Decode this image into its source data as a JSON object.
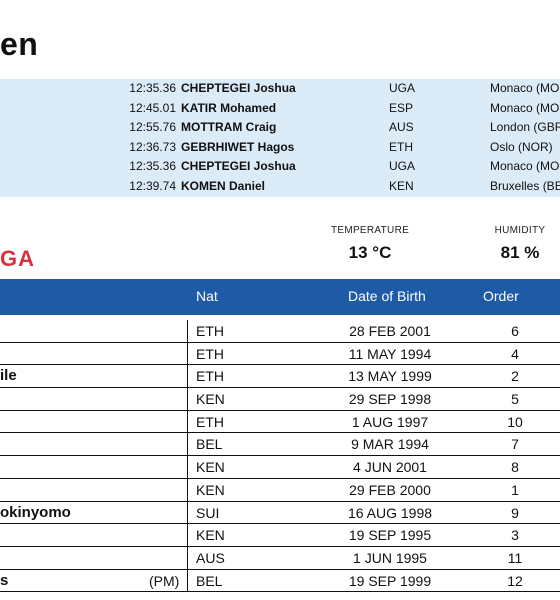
{
  "page": {
    "title_fragment": "en"
  },
  "records": [
    {
      "time": "12:35.36",
      "name": "CHEPTEGEI Joshua",
      "nat": "UGA",
      "venue": "Monaco (MO"
    },
    {
      "time": "12:45.01",
      "name": "KATIR Mohamed",
      "nat": "ESP",
      "venue": "Monaco (MO"
    },
    {
      "time": "12:55.76",
      "name": "MOTTRAM Craig",
      "nat": "AUS",
      "venue": "London (GBR"
    },
    {
      "time": "12:36.73",
      "name": "GEBRHIWET Hagos",
      "nat": "ETH",
      "venue": "Oslo (NOR)"
    },
    {
      "time": "12:35.36",
      "name": "CHEPTEGEI Joshua",
      "nat": "UGA",
      "venue": "Monaco (MO"
    },
    {
      "time": "12:39.74",
      "name": "KOMEN Daniel",
      "nat": "KEN",
      "venue": "Bruxelles (BE"
    }
  ],
  "brand": {
    "text": "GA"
  },
  "weather": {
    "temperature_label": "TEMPERATURE",
    "temperature_value": "13 °C",
    "humidity_label": "HUMIDITY",
    "humidity_value": "81 %"
  },
  "table": {
    "headers": {
      "nat": "Nat",
      "dob": "Date of Birth",
      "order": "Order"
    },
    "rows": [
      {
        "name": "",
        "pm": "",
        "nat": "ETH",
        "dob": "28 FEB 2001",
        "order": "6"
      },
      {
        "name": "",
        "pm": "",
        "nat": "ETH",
        "dob": "11 MAY 1994",
        "order": "4"
      },
      {
        "name": "ile",
        "pm": "",
        "nat": "ETH",
        "dob": "13 MAY 1999",
        "order": "2"
      },
      {
        "name": "",
        "pm": "",
        "nat": "KEN",
        "dob": "29 SEP 1998",
        "order": "5"
      },
      {
        "name": "",
        "pm": "",
        "nat": "ETH",
        "dob": "1 AUG 1997",
        "order": "10"
      },
      {
        "name": "",
        "pm": "",
        "nat": "BEL",
        "dob": "9 MAR 1994",
        "order": "7"
      },
      {
        "name": "",
        "pm": "",
        "nat": "KEN",
        "dob": "4 JUN 2001",
        "order": "8"
      },
      {
        "name": "",
        "pm": "",
        "nat": "KEN",
        "dob": "29 FEB 2000",
        "order": "1"
      },
      {
        "name": "okinyomo",
        "pm": "",
        "nat": "SUI",
        "dob": "16 AUG 1998",
        "order": "9"
      },
      {
        "name": "",
        "pm": "",
        "nat": "KEN",
        "dob": "19 SEP 1995",
        "order": "3"
      },
      {
        "name": "",
        "pm": "",
        "nat": "AUS",
        "dob": "1 JUN 1995",
        "order": "11"
      },
      {
        "name": "s",
        "pm": "(PM)",
        "nat": "BEL",
        "dob": "19 SEP 1999",
        "order": "12"
      }
    ]
  },
  "colors": {
    "accent_blue": "#1e5aa6",
    "records_bg": "#dcebf8",
    "brand_red": "#d9323f"
  }
}
